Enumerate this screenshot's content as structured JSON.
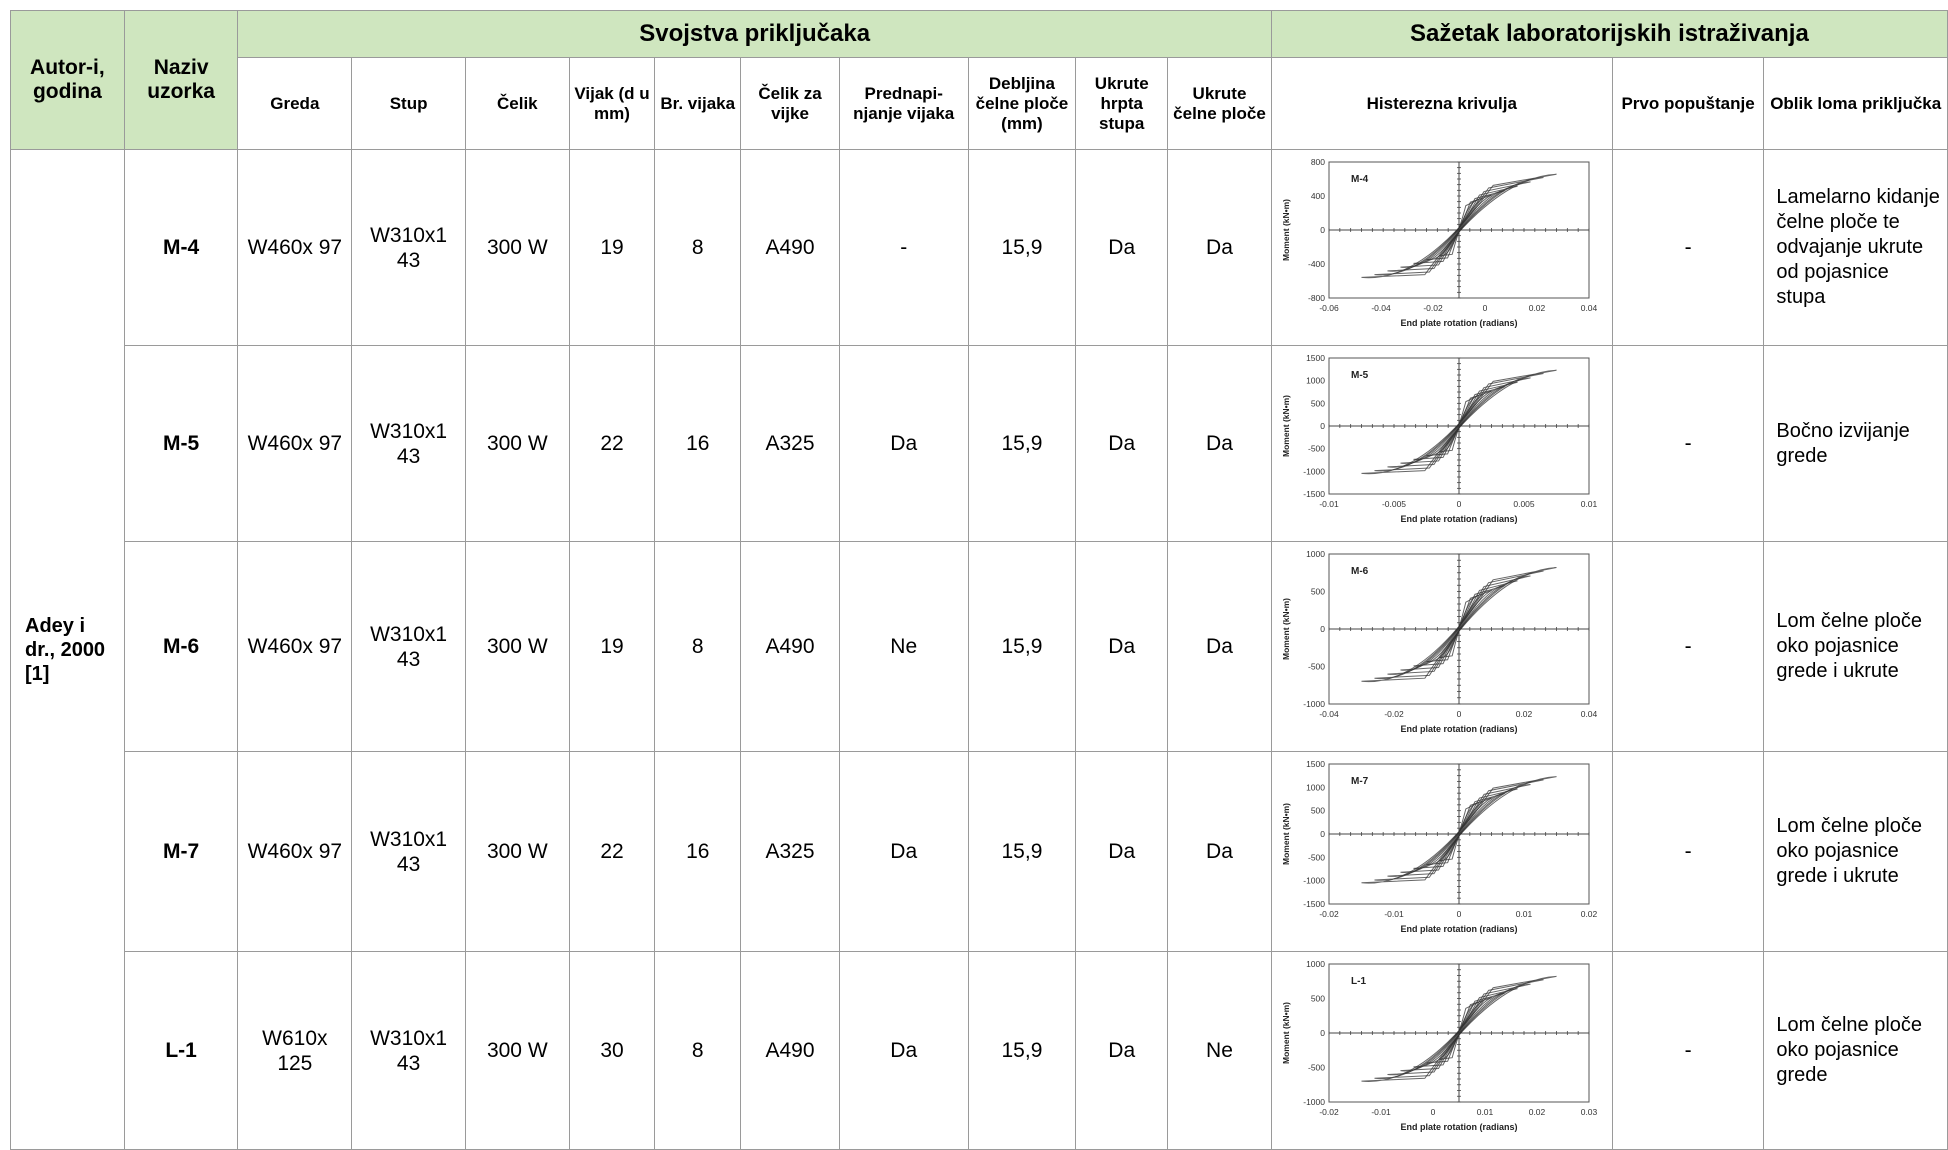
{
  "headers": {
    "author": "Autor-i, godina",
    "specimen": "Naziv uzorka",
    "group_properties": "Svojstva priključaka",
    "group_summary": "Sažetak laboratorijskih istraživanja",
    "beam": "Greda",
    "column": "Stup",
    "steel": "Čelik",
    "bolt": "Vijak (d u mm)",
    "bolt_count": "Br. vijaka",
    "bolt_steel": "Čelik za vijke",
    "pretension": "Prednapi-njanje vijaka",
    "plate_thickness": "Debljina čelne ploče (mm)",
    "web_stiffener": "Ukrute hrpta stupa",
    "plate_stiffener": "Ukrute čelne ploče",
    "hysteresis": "Histerezna krivulja",
    "first_yield": "Prvo popuštanje",
    "failure_mode": "Oblik loma priključka"
  },
  "author_cell": "Adey i dr., 2000 [1]",
  "plot_common": {
    "x_label": "End plate rotation (radians)",
    "y_label": "Moment (kN•m)"
  },
  "rows": [
    {
      "name": "M-4",
      "beam": "W460x 97",
      "column": "W310x1 43",
      "steel": "300 W",
      "bolt": "19",
      "bolt_count": "8",
      "bolt_steel": "A490",
      "pretension": "-",
      "plate": "15,9",
      "web_stiff": "Da",
      "plate_stiff": "Da",
      "first_yield": "-",
      "failure": "Lamelarno kidanje čelne ploče te odvajanje ukrute od pojasnice stupa",
      "plot": {
        "label": "M-4",
        "x_ticks": [
          "-0.06",
          "-0.04",
          "-0.02",
          "0",
          "0.02",
          "0.04"
        ],
        "y_ticks": [
          "800",
          "400",
          "0",
          "-400",
          "-800"
        ]
      }
    },
    {
      "name": "M-5",
      "beam": "W460x 97",
      "column": "W310x1 43",
      "steel": "300 W",
      "bolt": "22",
      "bolt_count": "16",
      "bolt_steel": "A325",
      "pretension": "Da",
      "plate": "15,9",
      "web_stiff": "Da",
      "plate_stiff": "Da",
      "first_yield": "-",
      "failure": "Bočno izvijanje grede",
      "plot": {
        "label": "M-5",
        "x_ticks": [
          "-0.01",
          "-0.005",
          "0",
          "0.005",
          "0.01"
        ],
        "y_ticks": [
          "1500",
          "1000",
          "500",
          "0",
          "-500",
          "-1000",
          "-1500"
        ]
      }
    },
    {
      "name": "M-6",
      "beam": "W460x 97",
      "column": "W310x1 43",
      "steel": "300 W",
      "bolt": "19",
      "bolt_count": "8",
      "bolt_steel": "A490",
      "pretension": "Ne",
      "plate": "15,9",
      "web_stiff": "Da",
      "plate_stiff": "Da",
      "first_yield": "-",
      "failure": "Lom čelne ploče oko pojasnice grede i ukrute",
      "plot": {
        "label": "M-6",
        "x_ticks": [
          "-0.04",
          "-0.02",
          "0",
          "0.02",
          "0.04"
        ],
        "y_ticks": [
          "1000",
          "500",
          "0",
          "-500",
          "-1000"
        ]
      }
    },
    {
      "name": "M-7",
      "beam": "W460x 97",
      "column": "W310x1 43",
      "steel": "300 W",
      "bolt": "22",
      "bolt_count": "16",
      "bolt_steel": "A325",
      "pretension": "Da",
      "plate": "15,9",
      "web_stiff": "Da",
      "plate_stiff": "Da",
      "first_yield": "-",
      "failure": "Lom čelne ploče oko pojasnice grede i ukrute",
      "plot": {
        "label": "M-7",
        "x_ticks": [
          "-0.02",
          "-0.01",
          "0",
          "0.01",
          "0.02"
        ],
        "y_ticks": [
          "1500",
          "1000",
          "500",
          "0",
          "-500",
          "-1000",
          "-1500"
        ]
      }
    },
    {
      "name": "L-1",
      "beam": "W610x 125",
      "column": "W310x1 43",
      "steel": "300 W",
      "bolt": "30",
      "bolt_count": "8",
      "bolt_steel": "A490",
      "pretension": "Da",
      "plate": "15,9",
      "web_stiff": "Da",
      "plate_stiff": "Ne",
      "first_yield": "-",
      "failure": "Lom čelne ploče oko pojasnice grede",
      "plot": {
        "label": "L-1",
        "x_ticks": [
          "-0.02",
          "-0.01",
          "0",
          "0.01",
          "0.02",
          "0.03"
        ],
        "y_ticks": [
          "1000",
          "500",
          "0",
          "-500",
          "-1000"
        ]
      }
    }
  ]
}
